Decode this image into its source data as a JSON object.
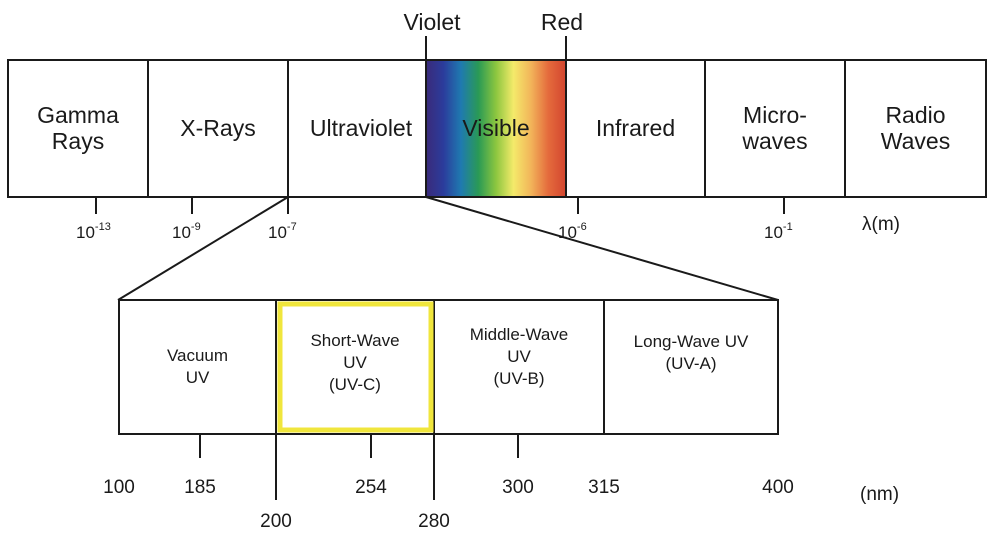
{
  "markers": {
    "violet": "Violet",
    "red": "Red"
  },
  "spectrum_bands": [
    {
      "lines": [
        "Gamma",
        "Rays"
      ]
    },
    {
      "lines": [
        "X-Rays"
      ]
    },
    {
      "lines": [
        "Ultraviolet"
      ]
    },
    {
      "lines": [
        "Visible"
      ]
    },
    {
      "lines": [
        "Infrared"
      ]
    },
    {
      "lines": [
        "Micro-",
        "waves"
      ]
    },
    {
      "lines": [
        "Radio",
        "Waves"
      ]
    }
  ],
  "wavelength_ticks": [
    {
      "base": "10",
      "exp": "-13"
    },
    {
      "base": "10",
      "exp": "-9"
    },
    {
      "base": "10",
      "exp": "-7"
    },
    {
      "base": "10",
      "exp": "-6"
    },
    {
      "base": "10",
      "exp": "-1"
    }
  ],
  "wavelength_unit": "λ(m)",
  "uv_bands": [
    {
      "lines": [
        "Vacuum",
        "UV"
      ],
      "highlighted": false
    },
    {
      "lines": [
        "Short-Wave",
        "UV",
        "(UV-C)"
      ],
      "highlighted": true
    },
    {
      "lines": [
        "Middle-Wave",
        "UV",
        "(UV-B)"
      ],
      "highlighted": false
    },
    {
      "lines": [
        "Long-Wave UV",
        "(UV-A)"
      ],
      "highlighted": false
    }
  ],
  "uv_ticks_upper": [
    "100",
    "185",
    "254",
    "300",
    "315",
    "400"
  ],
  "uv_ticks_lower": [
    "200",
    "280"
  ],
  "uv_unit": "(nm)",
  "colors": {
    "highlight": "#f0e63c",
    "visible_gradient": [
      "#3a2a7a",
      "#2b3c9c",
      "#1f7ab0",
      "#2a9a55",
      "#8cc63f",
      "#f4ea6a",
      "#f2b45a",
      "#e46a3c",
      "#d2452f"
    ]
  }
}
